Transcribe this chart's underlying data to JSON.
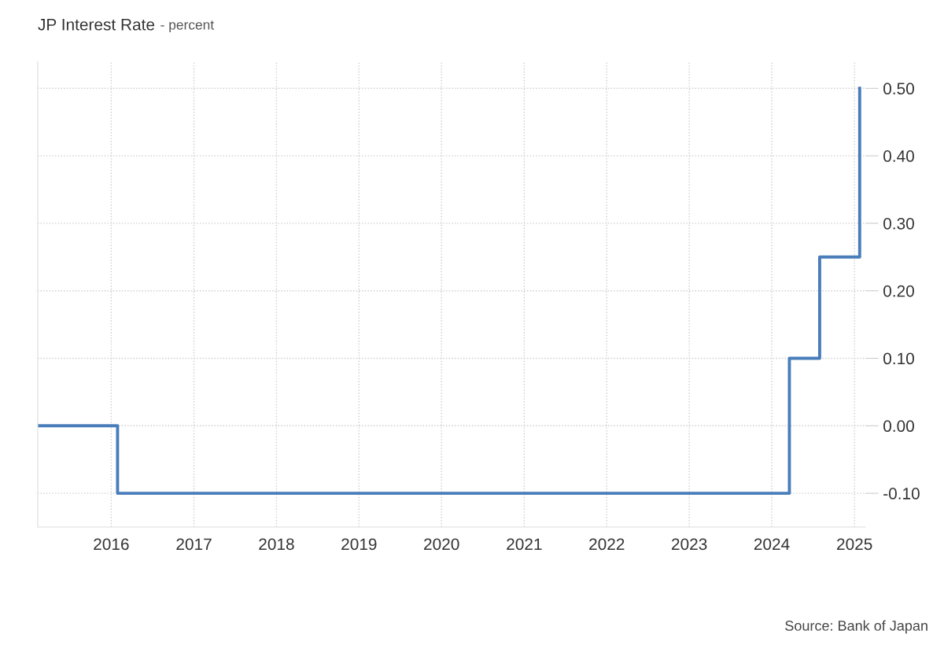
{
  "chart_data": {
    "type": "step",
    "title": "JP Interest Rate",
    "subtitle": "- percent",
    "annotations": [
      "Source: Bank of Japan"
    ],
    "x": [
      "2015-02-10",
      "2016-01-29",
      "2024-03-19",
      "2024-07-31",
      "2025-01-24"
    ],
    "series": [
      {
        "color": "#4a7ebb",
        "values": [
          0.0,
          -0.1,
          0.1,
          0.25,
          0.5
        ]
      }
    ],
    "xlim": [
      "2015-02-10",
      "2025-02-18"
    ],
    "xticks": [
      "2016",
      "2017",
      "2018",
      "2019",
      "2020",
      "2021",
      "2022",
      "2023",
      "2024",
      "2025"
    ],
    "ylim": [
      -0.15,
      0.54
    ],
    "yticks": [
      {
        "value": -0.1,
        "label": "-0.10"
      },
      {
        "value": 0,
        "label": "0.00"
      },
      {
        "value": 0.1,
        "label": "0.10"
      },
      {
        "value": 0.2,
        "label": "0.20"
      },
      {
        "value": 0.3,
        "label": "0.30"
      },
      {
        "value": 0.4,
        "label": "0.40"
      },
      {
        "value": 0.5,
        "label": "0.50"
      }
    ],
    "grid": true,
    "line_style": "solid",
    "marker": "none",
    "legend": false
  }
}
